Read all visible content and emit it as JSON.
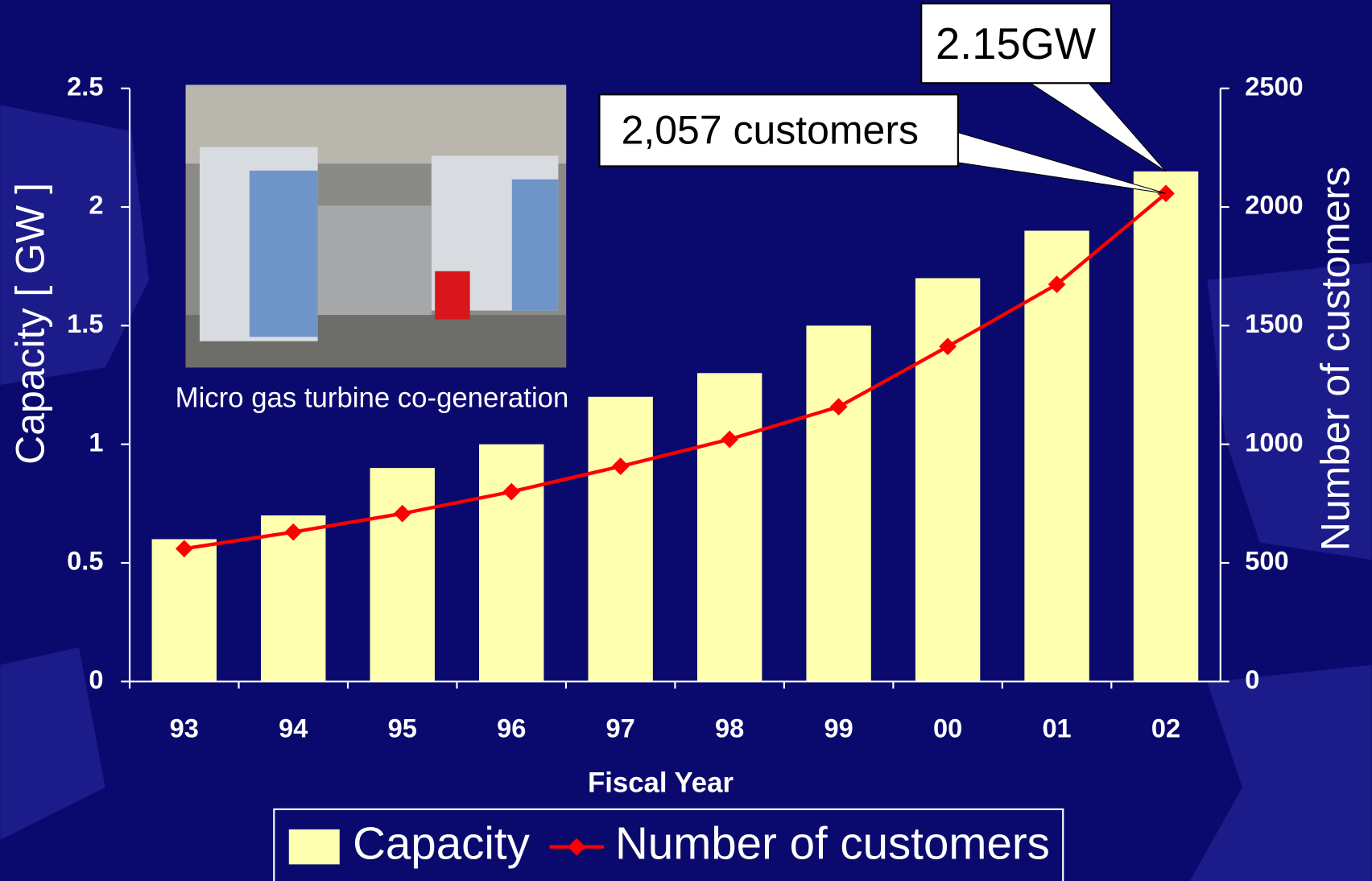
{
  "chart_data": {
    "type": "bar_line",
    "categories": [
      "93",
      "94",
      "95",
      "96",
      "97",
      "98",
      "99",
      "00",
      "01",
      "02"
    ],
    "series": [
      {
        "name": "Capacity",
        "type": "bar",
        "color": "#ffffb0",
        "values": [
          0.6,
          0.7,
          0.9,
          1.0,
          1.2,
          1.3,
          1.5,
          1.7,
          1.9,
          2.15
        ]
      },
      {
        "name": "Number of customers",
        "type": "line",
        "color": "#ff0000",
        "axis": "y2",
        "values": [
          560,
          630,
          708,
          800,
          907,
          1021,
          1158,
          1412,
          1674,
          2057
        ]
      }
    ],
    "ylabel": "Capacity [ GW ]",
    "y2label": "Number of customers",
    "xlabel": "Fiscal Year",
    "ylim": [
      0,
      2.5
    ],
    "yticks": [
      0,
      0.5,
      1,
      1.5,
      2,
      2.5
    ],
    "y2lim": [
      0,
      2500
    ],
    "y2ticks": [
      0,
      500,
      1000,
      1500,
      2000,
      2500
    ],
    "annotations": [
      "2.15GW",
      "2,057 customers"
    ],
    "image_caption": "Micro gas turbine co-generation",
    "legend": "bottom"
  }
}
